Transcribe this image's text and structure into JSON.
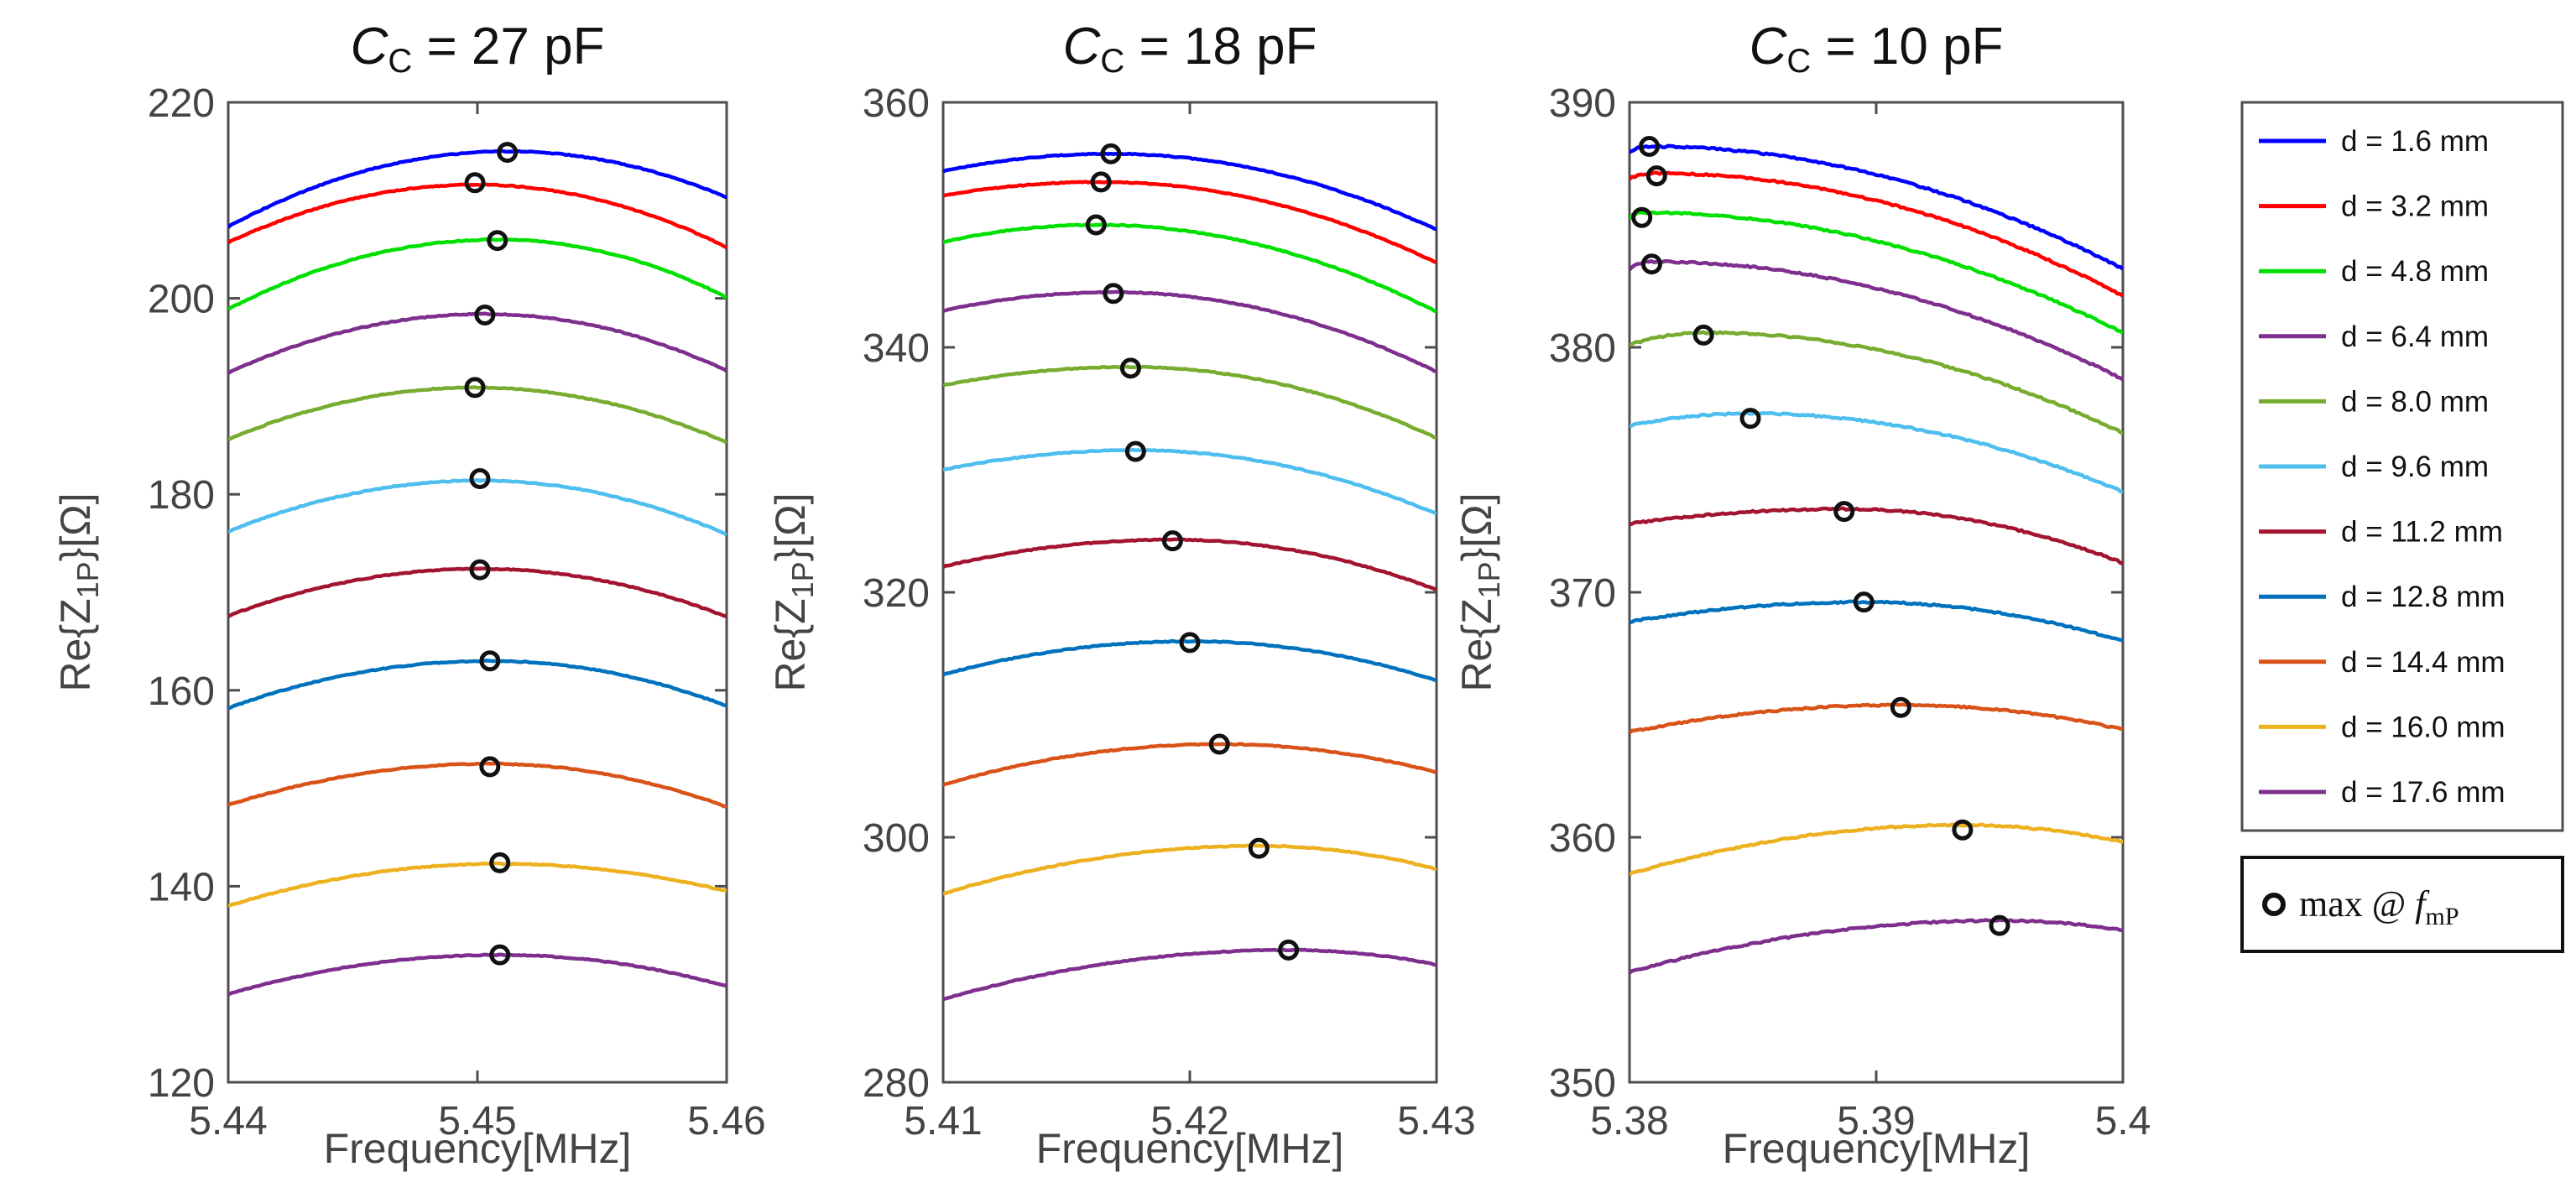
{
  "chart_data": [
    {
      "type": "line",
      "title": "C",
      "title_sub": "C",
      "title_rest": " = 27 pF",
      "xlabel": "Frequency[MHz]",
      "ylabel_main": "Re{Z",
      "ylabel_sub": "1P",
      "ylabel_tail": "}[Ω]",
      "xlim": [
        5.44,
        5.46
      ],
      "ylim": [
        120,
        220
      ],
      "xticks": [
        "5.44",
        "5.45",
        "5.46"
      ],
      "yticks": [
        "120",
        "140",
        "160",
        "180",
        "200",
        "220"
      ],
      "series": [
        {
          "name": "d = 1.6 mm",
          "color": "#0000ff",
          "start": 207.3,
          "peak": 215.0,
          "end": 210.3,
          "max_x": 5.4512,
          "max_y": 214.9
        },
        {
          "name": "d = 3.2 mm",
          "color": "#ff0000",
          "start": 205.7,
          "peak": 211.6,
          "end": 205.2,
          "max_x": 5.4499,
          "max_y": 211.8
        },
        {
          "name": "d = 4.8 mm",
          "color": "#00e000",
          "start": 198.9,
          "peak": 206.0,
          "end": 200.1,
          "max_x": 5.4508,
          "max_y": 205.9
        },
        {
          "name": "d = 6.4 mm",
          "color": "#7e2f8e",
          "start": 192.4,
          "peak": 198.4,
          "end": 192.6,
          "max_x": 5.4503,
          "max_y": 198.3
        },
        {
          "name": "d = 8.0 mm",
          "color": "#77ac30",
          "start": 185.6,
          "peak": 190.9,
          "end": 185.3,
          "max_x": 5.4499,
          "max_y": 190.9
        },
        {
          "name": "d = 9.6 mm",
          "color": "#4dbeee",
          "start": 176.2,
          "peak": 181.4,
          "end": 175.9,
          "max_x": 5.4501,
          "max_y": 181.6
        },
        {
          "name": "d = 11.2 mm",
          "color": "#a2142f",
          "start": 167.6,
          "peak": 172.4,
          "end": 167.5,
          "max_x": 5.4501,
          "max_y": 172.3
        },
        {
          "name": "d = 12.8 mm",
          "color": "#0072bd",
          "start": 158.2,
          "peak": 163.0,
          "end": 158.4,
          "max_x": 5.4505,
          "max_y": 163.0
        },
        {
          "name": "d = 14.4 mm",
          "color": "#d95319",
          "start": 148.3,
          "peak": 152.5,
          "end": 148.1,
          "max_x": 5.4505,
          "max_y": 152.2
        },
        {
          "name": "d = 16.0 mm",
          "color": "#edb120",
          "start": 138.0,
          "peak": 142.3,
          "end": 139.5,
          "max_x": 5.4509,
          "max_y": 142.4
        },
        {
          "name": "d = 17.6 mm",
          "color": "#7e2f8e",
          "start": 129.0,
          "peak": 133.0,
          "end": 129.8,
          "max_x": 5.4509,
          "max_y": 133.0
        }
      ]
    },
    {
      "type": "line",
      "title": "C",
      "title_sub": "C",
      "title_rest": " = 18 pF",
      "xlabel": "Frequency[MHz]",
      "ylabel_main": "Re{Z",
      "ylabel_sub": "1P",
      "ylabel_tail": "}[Ω]",
      "xlim": [
        5.41,
        5.43
      ],
      "ylim": [
        280,
        360
      ],
      "xticks": [
        "5.41",
        "5.42",
        "5.43"
      ],
      "yticks": [
        "280",
        "300",
        "320",
        "340",
        "360"
      ],
      "series": [
        {
          "name": "d = 1.6 mm",
          "color": "#0000ff",
          "start": 354.4,
          "peak": 355.8,
          "end": 349.6,
          "max_x": 5.4168,
          "max_y": 355.8
        },
        {
          "name": "d = 3.2 mm",
          "color": "#ff0000",
          "start": 352.4,
          "peak": 353.5,
          "end": 346.9,
          "max_x": 5.4164,
          "max_y": 353.5
        },
        {
          "name": "d = 4.8 mm",
          "color": "#00e000",
          "start": 348.6,
          "peak": 350.0,
          "end": 342.9,
          "max_x": 5.4162,
          "max_y": 350.0
        },
        {
          "name": "d = 6.4 mm",
          "color": "#7e2f8e",
          "start": 343.0,
          "peak": 344.5,
          "end": 338.0,
          "max_x": 5.4169,
          "max_y": 344.4
        },
        {
          "name": "d = 8.0 mm",
          "color": "#77ac30",
          "start": 336.9,
          "peak": 338.4,
          "end": 332.6,
          "max_x": 5.4176,
          "max_y": 338.3
        },
        {
          "name": "d = 9.6 mm",
          "color": "#4dbeee",
          "start": 330.0,
          "peak": 331.6,
          "end": 326.4,
          "max_x": 5.4178,
          "max_y": 331.5
        },
        {
          "name": "d = 11.2 mm",
          "color": "#a2142f",
          "start": 322.1,
          "peak": 324.3,
          "end": 320.2,
          "max_x": 5.4193,
          "max_y": 324.2
        },
        {
          "name": "d = 12.8 mm",
          "color": "#0072bd",
          "start": 313.3,
          "peak": 316.0,
          "end": 312.8,
          "max_x": 5.42,
          "max_y": 315.9
        },
        {
          "name": "d = 14.4 mm",
          "color": "#d95319",
          "start": 304.3,
          "peak": 307.6,
          "end": 305.3,
          "max_x": 5.4212,
          "max_y": 307.6
        },
        {
          "name": "d = 16.0 mm",
          "color": "#edb120",
          "start": 295.4,
          "peak": 299.3,
          "end": 297.4,
          "max_x": 5.4228,
          "max_y": 299.1
        },
        {
          "name": "d = 17.6 mm",
          "color": "#7e2f8e",
          "start": 286.8,
          "peak": 290.8,
          "end": 289.6,
          "max_x": 5.424,
          "max_y": 290.8
        }
      ]
    },
    {
      "type": "line",
      "title": "C",
      "title_sub": "C",
      "title_rest": " = 10 pF",
      "xlabel": "Frequency[MHz]",
      "ylabel_main": "Re{Z",
      "ylabel_sub": "1P",
      "ylabel_tail": "}[Ω]",
      "xlim": [
        5.38,
        5.4
      ],
      "ylim": [
        350,
        390
      ],
      "xticks": [
        "5.38",
        "5.39",
        "5.4"
      ],
      "yticks": [
        "350",
        "360",
        "370",
        "380",
        "390"
      ],
      "series": [
        {
          "name": "d = 1.6 mm",
          "color": "#0000ff",
          "start": 388.0,
          "peak": 388.2,
          "end": 383.2,
          "max_x": 5.3808,
          "max_y": 388.2
        },
        {
          "name": "d = 3.2 mm",
          "color": "#ff0000",
          "start": 386.9,
          "peak": 387.1,
          "end": 382.1,
          "max_x": 5.3811,
          "max_y": 387.0
        },
        {
          "name": "d = 4.8 mm",
          "color": "#00e000",
          "start": 385.3,
          "peak": 385.5,
          "end": 380.6,
          "max_x": 5.3805,
          "max_y": 385.3
        },
        {
          "name": "d = 6.4 mm",
          "color": "#7e2f8e",
          "start": 383.2,
          "peak": 383.5,
          "end": 378.7,
          "max_x": 5.3809,
          "max_y": 383.4
        },
        {
          "name": "d = 8.0 mm",
          "color": "#77ac30",
          "start": 380.1,
          "peak": 380.6,
          "end": 376.5,
          "max_x": 5.383,
          "max_y": 380.5
        },
        {
          "name": "d = 9.6 mm",
          "color": "#4dbeee",
          "start": 376.8,
          "peak": 377.3,
          "end": 374.1,
          "max_x": 5.3849,
          "max_y": 377.1
        },
        {
          "name": "d = 11.2 mm",
          "color": "#a2142f",
          "start": 372.8,
          "peak": 373.4,
          "end": 371.2,
          "max_x": 5.3887,
          "max_y": 373.3
        },
        {
          "name": "d = 12.8 mm",
          "color": "#0072bd",
          "start": 368.8,
          "peak": 369.6,
          "end": 368.0,
          "max_x": 5.3895,
          "max_y": 369.6
        },
        {
          "name": "d = 14.4 mm",
          "color": "#d95319",
          "start": 364.3,
          "peak": 365.4,
          "end": 364.4,
          "max_x": 5.391,
          "max_y": 365.3
        },
        {
          "name": "d = 16.0 mm",
          "color": "#edb120",
          "start": 358.5,
          "peak": 360.5,
          "end": 359.8,
          "max_x": 5.3935,
          "max_y": 360.3
        },
        {
          "name": "d = 17.6 mm",
          "color": "#7e2f8e",
          "start": 354.5,
          "peak": 356.6,
          "end": 356.2,
          "max_x": 5.395,
          "max_y": 356.4
        }
      ]
    }
  ],
  "legend": {
    "entries": [
      "d = 1.6 mm",
      "d = 3.2 mm",
      "d = 4.8 mm",
      "d = 6.4 mm",
      "d = 8.0 mm",
      "d = 9.6 mm",
      "d = 11.2 mm",
      "d = 12.8 mm",
      "d = 14.4 mm",
      "d = 16.0 mm",
      "d = 17.6 mm"
    ],
    "colors": [
      "#0000ff",
      "#ff0000",
      "#00e000",
      "#7e2f8e",
      "#77ac30",
      "#4dbeee",
      "#a2142f",
      "#0072bd",
      "#d95319",
      "#edb120",
      "#7e2f8e"
    ],
    "marker_label": "max @ ",
    "marker_label_var": "f",
    "marker_label_sub": "mP"
  }
}
